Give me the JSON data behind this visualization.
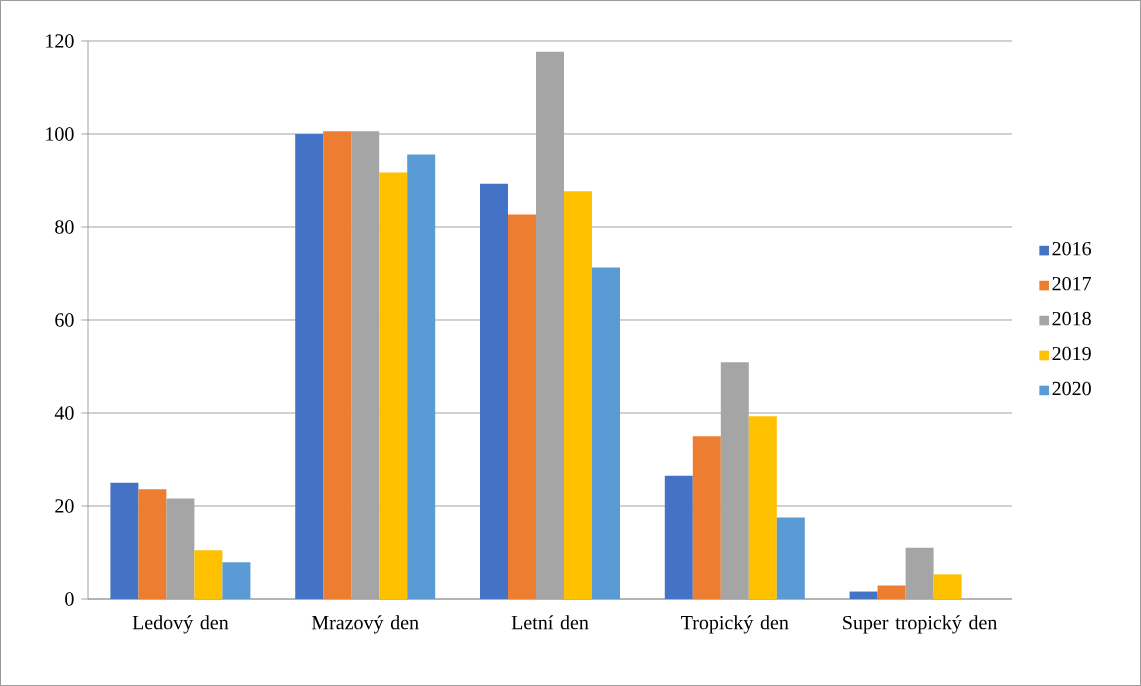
{
  "chart_data": {
    "type": "bar",
    "categories": [
      "Ledový den",
      "Mrazový den",
      "Letní den",
      "Tropický den",
      "Super tropický den"
    ],
    "series": [
      {
        "name": "2016",
        "color": "#4472c4",
        "values": [
          25.0,
          100.0,
          89.3,
          26.5,
          1.6
        ]
      },
      {
        "name": "2017",
        "color": "#ed7d31",
        "values": [
          23.6,
          100.6,
          82.7,
          35.0,
          2.9
        ]
      },
      {
        "name": "2018",
        "color": "#a5a5a5",
        "values": [
          21.6,
          100.6,
          117.7,
          50.9,
          11.0
        ]
      },
      {
        "name": "2019",
        "color": "#ffc000",
        "values": [
          10.5,
          91.7,
          87.7,
          39.3,
          5.3
        ]
      },
      {
        "name": "2020",
        "color": "#5b9bd5",
        "values": [
          7.9,
          95.6,
          71.3,
          17.5,
          null
        ]
      }
    ],
    "ylim": [
      0,
      120
    ],
    "yticks": [
      0,
      20,
      40,
      60,
      80,
      100,
      120
    ],
    "grid": "y",
    "legend": "right"
  }
}
